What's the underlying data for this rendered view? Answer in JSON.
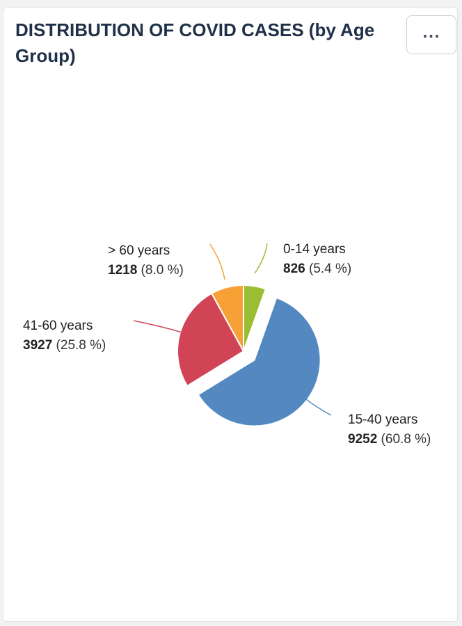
{
  "card": {
    "title": "DISTRIBUTION OF COVID CASES (by Age Group)",
    "menu_label": "..."
  },
  "chart_data": {
    "type": "pie",
    "title": "DISTRIBUTION OF COVID CASES (by Age Group)",
    "slices": [
      {
        "label": "0-14 years",
        "value": 826,
        "percent_label": "(5.4 %)",
        "color": "#9bbd34"
      },
      {
        "label": "15-40 years",
        "value": 9252,
        "percent_label": "(60.8 %)",
        "color": "#5388c1",
        "exploded": true
      },
      {
        "label": "41-60 years",
        "value": 3927,
        "percent_label": "(25.8 %)",
        "color": "#d04456"
      },
      {
        "label": "> 60 years",
        "value": 1218,
        "percent_label": "(8.0 %)",
        "color": "#f7a035"
      }
    ],
    "start": "12 o'clock",
    "direction": "clockwise",
    "legend": "none"
  }
}
